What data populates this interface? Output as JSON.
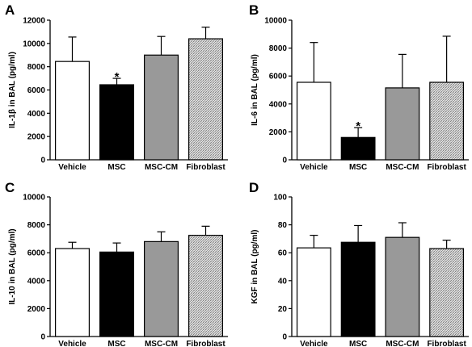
{
  "chart_data": [
    {
      "type": "bar",
      "panel": "A",
      "categories": [
        "Vehicle",
        "MSC",
        "MSC-CM",
        "Fibroblast"
      ],
      "values": [
        8450,
        6450,
        9000,
        10400
      ],
      "errors": [
        2100,
        550,
        1600,
        1000
      ],
      "ylabel": "IL-1β in BAL (pg/ml)",
      "ylim": [
        0,
        12000
      ],
      "yticks": [
        "0",
        "2000",
        "4000",
        "6000",
        "8000",
        "10000",
        "12000"
      ],
      "annotations": [
        "",
        "*",
        "",
        ""
      ],
      "fills": [
        "white",
        "black",
        "gray",
        "hatched"
      ]
    },
    {
      "type": "bar",
      "panel": "B",
      "categories": [
        "Vehicle",
        "MSC",
        "MSC-CM",
        "Fibroblast"
      ],
      "values": [
        5550,
        1600,
        5150,
        5550
      ],
      "errors": [
        2850,
        700,
        2400,
        3300
      ],
      "ylabel": "IL-6 in BAL (pg/ml)",
      "ylim": [
        0,
        10000
      ],
      "yticks": [
        "0",
        "2000",
        "4000",
        "6000",
        "8000",
        "10000"
      ],
      "annotations": [
        "",
        "*",
        "",
        ""
      ],
      "fills": [
        "white",
        "black",
        "gray",
        "hatched"
      ]
    },
    {
      "type": "bar",
      "panel": "C",
      "categories": [
        "Vehicle",
        "MSC",
        "MSC-CM",
        "Fibroblast"
      ],
      "values": [
        6300,
        6050,
        6800,
        7250
      ],
      "errors": [
        450,
        650,
        700,
        650
      ],
      "ylabel": "IL-10 in BAL (pg/ml)",
      "ylim": [
        0,
        10000
      ],
      "yticks": [
        "0",
        "2000",
        "4000",
        "6000",
        "8000",
        "10000"
      ],
      "annotations": [
        "",
        "",
        "",
        ""
      ],
      "fills": [
        "white",
        "black",
        "gray",
        "hatched"
      ]
    },
    {
      "type": "bar",
      "panel": "D",
      "categories": [
        "Vehicle",
        "MSC",
        "MSC-CM",
        "Fibroblast"
      ],
      "values": [
        63.5,
        67.5,
        71,
        63
      ],
      "errors": [
        9,
        12,
        10.5,
        6
      ],
      "ylabel": "KGF in BAL (pg/ml)",
      "ylim": [
        0,
        100
      ],
      "yticks": [
        "0",
        "20",
        "40",
        "60",
        "80",
        "100"
      ],
      "annotations": [
        "",
        "",
        "",
        ""
      ],
      "fills": [
        "white",
        "black",
        "gray",
        "hatched"
      ]
    }
  ]
}
